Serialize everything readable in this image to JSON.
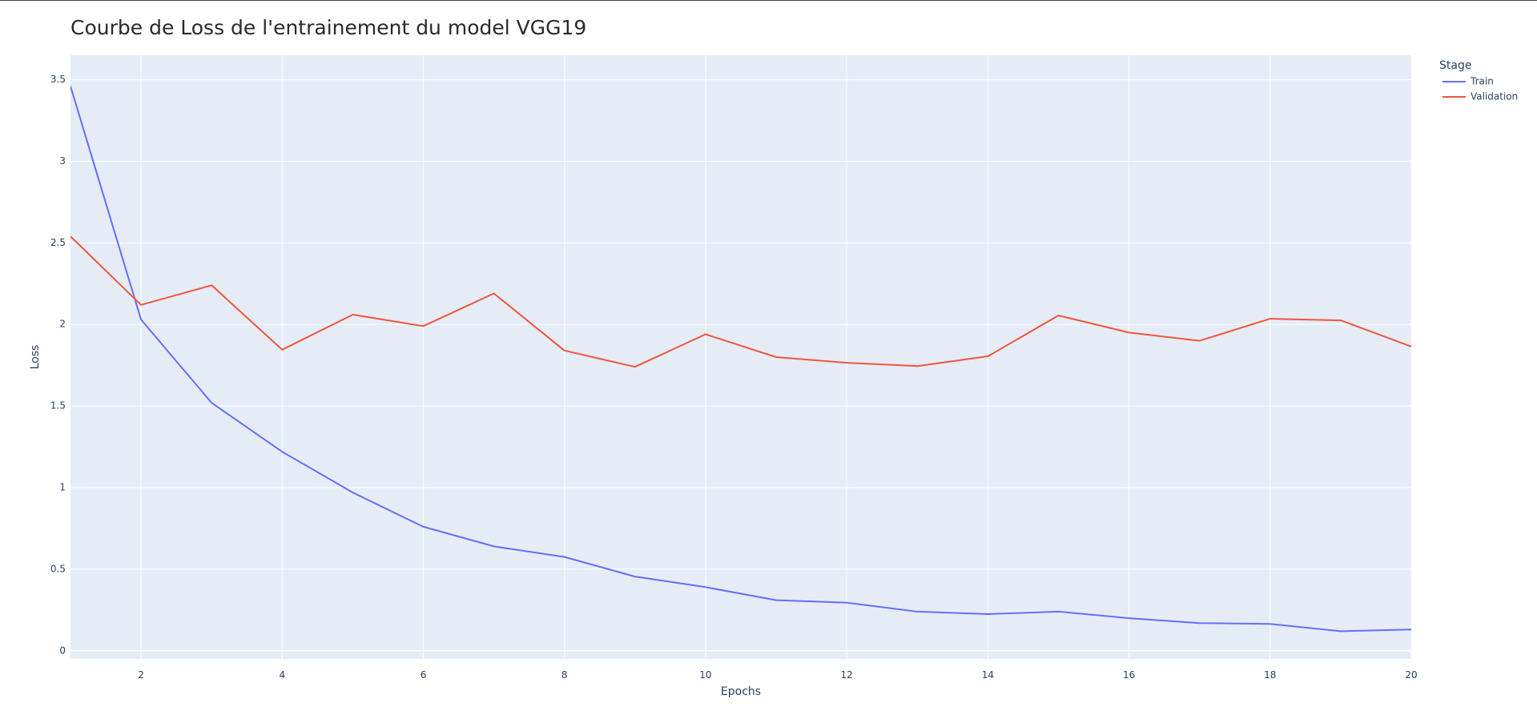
{
  "chart_data": {
    "type": "line",
    "title": "Courbe de Loss de l'entrainement du model VGG19",
    "xlabel": "Epochs",
    "ylabel": "Loss",
    "xlim": [
      1,
      20
    ],
    "ylim": [
      -0.05,
      3.65
    ],
    "x_ticks": [
      2,
      4,
      6,
      8,
      10,
      12,
      14,
      16,
      18,
      20
    ],
    "x_tick_labels": [
      "2",
      "4",
      "6",
      "8",
      "10",
      "12",
      "14",
      "16",
      "18",
      "20"
    ],
    "y_ticks": [
      0,
      0.5,
      1,
      1.5,
      2,
      2.5,
      3,
      3.5
    ],
    "y_tick_labels": [
      "0",
      "0.5",
      "1",
      "1.5",
      "2",
      "2.5",
      "3",
      "3.5"
    ],
    "grid": true,
    "legend": {
      "title": "Stage",
      "placement": "top-right-outside"
    },
    "x": [
      1,
      2,
      3,
      4,
      5,
      6,
      7,
      8,
      9,
      10,
      11,
      12,
      13,
      14,
      15,
      16,
      17,
      18,
      19,
      20
    ],
    "series": [
      {
        "name": "Train",
        "color": "#636efa",
        "values": [
          3.46,
          2.03,
          1.52,
          1.22,
          0.97,
          0.76,
          0.64,
          0.575,
          0.455,
          0.39,
          0.31,
          0.295,
          0.24,
          0.225,
          0.24,
          0.2,
          0.17,
          0.165,
          0.12,
          0.13
        ]
      },
      {
        "name": "Validation",
        "color": "#ef553b",
        "values": [
          2.54,
          2.12,
          2.24,
          1.845,
          2.06,
          1.99,
          2.19,
          1.84,
          1.74,
          1.94,
          1.8,
          1.765,
          1.745,
          1.805,
          2.055,
          1.95,
          1.9,
          2.035,
          2.025,
          1.865
        ]
      }
    ],
    "plot_background": "#e5ecf6",
    "grid_color": "#ffffff"
  }
}
